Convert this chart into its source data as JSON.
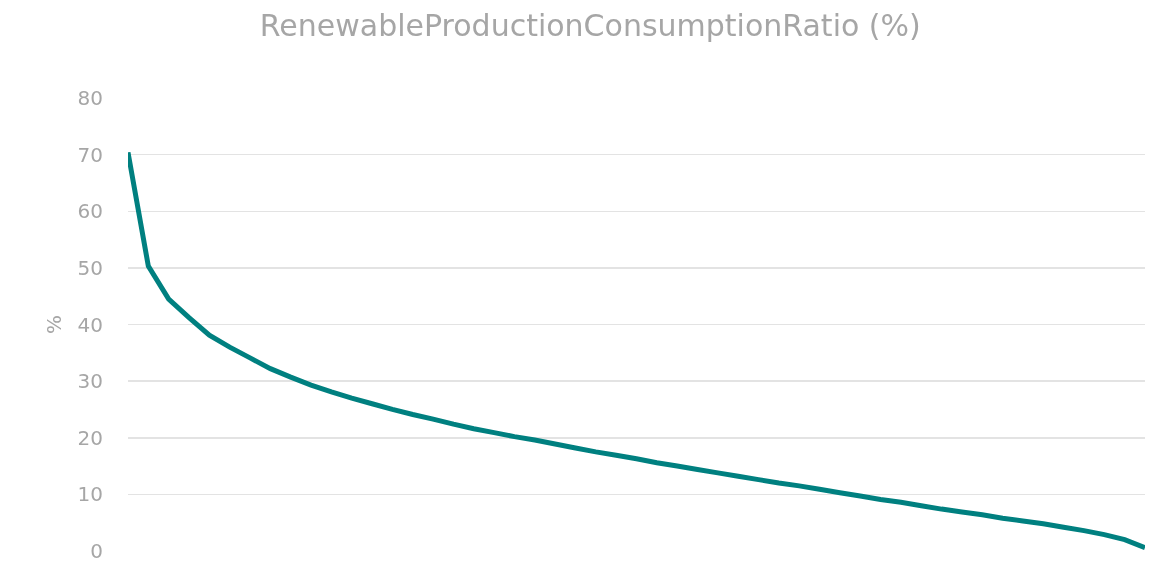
{
  "chart_data": {
    "type": "line",
    "title": "RenewableProductionConsumptionRatio (%)",
    "ylabel": "%",
    "categories": [
      null,
      null,
      null,
      null,
      null,
      null,
      null,
      null,
      null,
      null,
      null,
      null,
      null,
      null,
      null,
      null,
      null,
      null,
      null,
      null,
      null,
      null,
      null,
      null,
      null,
      null,
      null,
      null,
      null,
      null,
      null,
      null,
      null,
      null,
      null,
      null,
      null,
      null,
      null,
      null,
      null,
      null,
      null,
      null,
      null,
      null,
      null,
      null,
      null,
      null,
      null
    ],
    "series": [
      {
        "color": "#008080",
        "values": [
          70.4,
          50.3,
          44.5,
          41.2,
          38.1,
          36.0,
          34.1,
          32.2,
          30.7,
          29.3,
          28.1,
          27.0,
          26.0,
          25.0,
          24.1,
          23.3,
          22.4,
          21.6,
          20.9,
          20.2,
          19.6,
          18.9,
          18.2,
          17.5,
          16.9,
          16.3,
          15.6,
          15.0,
          14.4,
          13.8,
          13.2,
          12.6,
          12.0,
          11.5,
          10.9,
          10.3,
          9.7,
          9.1,
          8.6,
          8.0,
          7.4,
          6.9,
          6.4,
          5.8,
          5.3,
          4.8,
          4.2,
          3.6,
          2.9,
          2.0,
          0.6
        ]
      }
    ],
    "ylim": [
      0,
      80
    ],
    "yticks": [
      0,
      10,
      20,
      30,
      40,
      50,
      60,
      70,
      80
    ],
    "grid": "y",
    "tick_labels": "y",
    "marker": "none",
    "line_style": "solid"
  }
}
